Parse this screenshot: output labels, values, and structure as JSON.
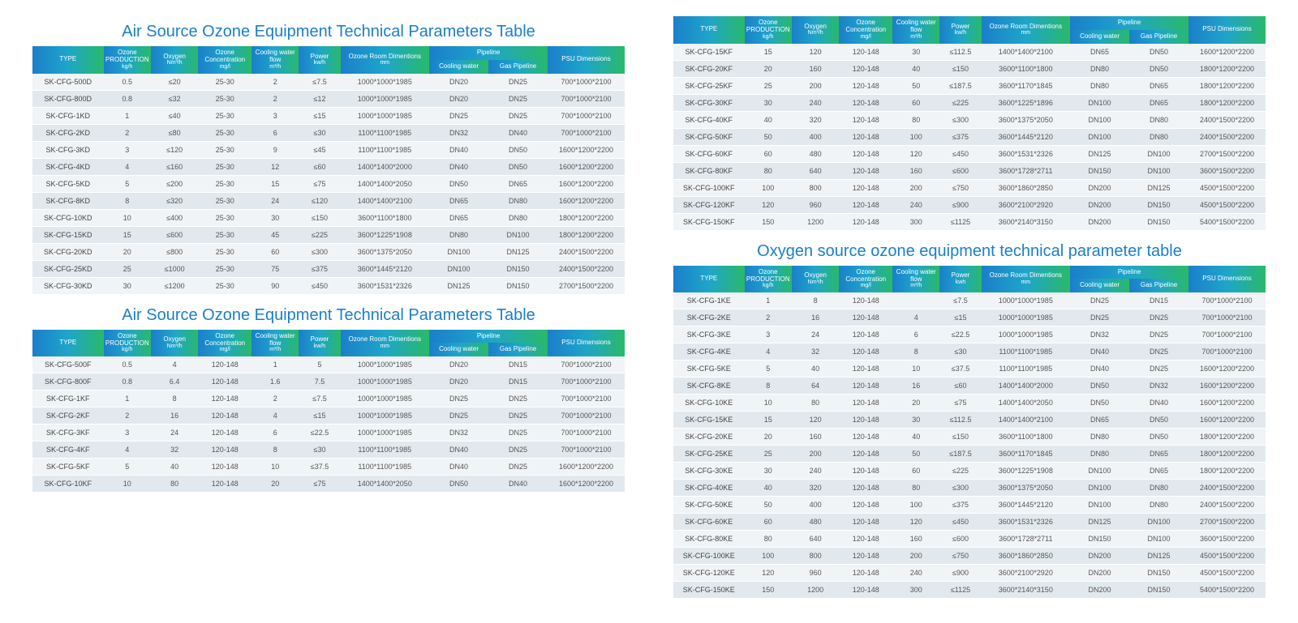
{
  "colors": {
    "title": "#1a7fcb",
    "header_grad_from": "#1a7fcb",
    "header_grad_mid": "#1fa5c9",
    "header_grad_to": "#2ab96a",
    "row_odd": "#f0f4f7",
    "row_even": "#e1e9ee",
    "text": "#555555"
  },
  "headers": {
    "type": "TYPE",
    "ozone_prod": "Ozone PRODUCTION",
    "ozone_prod_unit": "kg/h",
    "oxygen": "Oxygen",
    "oxygen_unit": "Nm³/h",
    "ozone_conc": "Ozone Concentration",
    "ozone_conc_unit": "mg/l",
    "cooling_flow": "Cooling water flow",
    "cooling_flow_unit": "m³/h",
    "power": "Power",
    "power_unit": "kw/h",
    "power_unit2": "kwh",
    "room": "Ozone Room Dimentions",
    "room_unit": "mm",
    "pipeline": "Pipeline",
    "cooling_water": "Cooling water",
    "gas": "Gas Pipeline",
    "psu": "PSU Dimensions"
  },
  "tables": [
    {
      "title": "Air Source Ozone Equipment Technical Parameters Table",
      "power_unit_key": "power_unit",
      "rows": [
        [
          "SK-CFG-500D",
          "0.5",
          "≤20",
          "25-30",
          "2",
          "≤7.5",
          "1000*1000*1985",
          "DN20",
          "DN25",
          "700*1000*2100"
        ],
        [
          "SK-CFG-800D",
          "0.8",
          "≤32",
          "25-30",
          "2",
          "≤12",
          "1000*1000*1985",
          "DN20",
          "DN25",
          "700*1000*2100"
        ],
        [
          "SK-CFG-1KD",
          "1",
          "≤40",
          "25-30",
          "3",
          "≤15",
          "1000*1000*1985",
          "DN25",
          "DN25",
          "700*1000*2100"
        ],
        [
          "SK-CFG-2KD",
          "2",
          "≤80",
          "25-30",
          "6",
          "≤30",
          "1100*1100*1985",
          "DN32",
          "DN40",
          "700*1000*2100"
        ],
        [
          "SK-CFG-3KD",
          "3",
          "≤120",
          "25-30",
          "9",
          "≤45",
          "1100*1100*1985",
          "DN40",
          "DN50",
          "1600*1200*2200"
        ],
        [
          "SK-CFG-4KD",
          "4",
          "≤160",
          "25-30",
          "12",
          "≤60",
          "1400*1400*2000",
          "DN40",
          "DN50",
          "1600*1200*2200"
        ],
        [
          "SK-CFG-5KD",
          "5",
          "≤200",
          "25-30",
          "15",
          "≤75",
          "1400*1400*2050",
          "DN50",
          "DN65",
          "1600*1200*2200"
        ],
        [
          "SK-CFG-8KD",
          "8",
          "≤320",
          "25-30",
          "24",
          "≤120",
          "1400*1400*2100",
          "DN65",
          "DN80",
          "1600*1200*2200"
        ],
        [
          "SK-CFG-10KD",
          "10",
          "≤400",
          "25-30",
          "30",
          "≤150",
          "3600*1100*1800",
          "DN65",
          "DN80",
          "1800*1200*2200"
        ],
        [
          "SK-CFG-15KD",
          "15",
          "≤600",
          "25-30",
          "45",
          "≤225",
          "3600*1225*1908",
          "DN80",
          "DN100",
          "1800*1200*2200"
        ],
        [
          "SK-CFG-20KD",
          "20",
          "≤800",
          "25-30",
          "60",
          "≤300",
          "3600*1375*2050",
          "DN100",
          "DN125",
          "2400*1500*2200"
        ],
        [
          "SK-CFG-25KD",
          "25",
          "≤1000",
          "25-30",
          "75",
          "≤375",
          "3600*1445*2120",
          "DN100",
          "DN150",
          "2400*1500*2200"
        ],
        [
          "SK-CFG-30KD",
          "30",
          "≤1200",
          "25-30",
          "90",
          "≤450",
          "3600*1531*2326",
          "DN125",
          "DN150",
          "2700*1500*2200"
        ]
      ]
    },
    {
      "title": "Air Source Ozone Equipment Technical Parameters Table",
      "power_unit_key": "power_unit",
      "rows": [
        [
          "SK-CFG-500F",
          "0.5",
          "4",
          "120-148",
          "1",
          "5",
          "1000*1000*1985",
          "DN20",
          "DN15",
          "700*1000*2100"
        ],
        [
          "SK-CFG-800F",
          "0.8",
          "6.4",
          "120-148",
          "1.6",
          "7.5",
          "1000*1000*1985",
          "DN20",
          "DN15",
          "700*1000*2100"
        ],
        [
          "SK-CFG-1KF",
          "1",
          "8",
          "120-148",
          "2",
          "≤7.5",
          "1000*1000*1985",
          "DN25",
          "DN25",
          "700*1000*2100"
        ],
        [
          "SK-CFG-2KF",
          "2",
          "16",
          "120-148",
          "4",
          "≤15",
          "1000*1000*1985",
          "DN25",
          "DN25",
          "700*1000*2100"
        ],
        [
          "SK-CFG-3KF",
          "3",
          "24",
          "120-148",
          "6",
          "≤22.5",
          "1000*1000*1985",
          "DN32",
          "DN25",
          "700*1000*2100"
        ],
        [
          "SK-CFG-4KF",
          "4",
          "32",
          "120-148",
          "8",
          "≤30",
          "1100*1100*1985",
          "DN40",
          "DN25",
          "700*1000*2100"
        ],
        [
          "SK-CFG-5KF",
          "5",
          "40",
          "120-148",
          "10",
          "≤37.5",
          "1100*1100*1985",
          "DN40",
          "DN25",
          "1600*1200*2200"
        ],
        [
          "SK-CFG-10KF",
          "10",
          "80",
          "120-148",
          "20",
          "≤75",
          "1400*1400*2050",
          "DN50",
          "DN40",
          "1600*1200*2200"
        ]
      ]
    },
    {
      "title": "",
      "power_unit_key": "power_unit",
      "rows": [
        [
          "SK-CFG-15KF",
          "15",
          "120",
          "120-148",
          "30",
          "≤112.5",
          "1400*1400*2100",
          "DN65",
          "DN50",
          "1600*1200*2200"
        ],
        [
          "SK-CFG-20KF",
          "20",
          "160",
          "120-148",
          "40",
          "≤150",
          "3600*1100*1800",
          "DN80",
          "DN50",
          "1800*1200*2200"
        ],
        [
          "SK-CFG-25KF",
          "25",
          "200",
          "120-148",
          "50",
          "≤187.5",
          "3600*1170*1845",
          "DN80",
          "DN65",
          "1800*1200*2200"
        ],
        [
          "SK-CFG-30KF",
          "30",
          "240",
          "120-148",
          "60",
          "≤225",
          "3600*1225*1896",
          "DN100",
          "DN65",
          "1800*1200*2200"
        ],
        [
          "SK-CFG-40KF",
          "40",
          "320",
          "120-148",
          "80",
          "≤300",
          "3600*1375*2050",
          "DN100",
          "DN80",
          "2400*1500*2200"
        ],
        [
          "SK-CFG-50KF",
          "50",
          "400",
          "120-148",
          "100",
          "≤375",
          "3600*1445*2120",
          "DN100",
          "DN80",
          "2400*1500*2200"
        ],
        [
          "SK-CFG-60KF",
          "60",
          "480",
          "120-148",
          "120",
          "≤450",
          "3600*1531*2326",
          "DN125",
          "DN100",
          "2700*1500*2200"
        ],
        [
          "SK-CFG-80KF",
          "80",
          "640",
          "120-148",
          "160",
          "≤600",
          "3600*1728*2711",
          "DN150",
          "DN100",
          "3600*1500*2200"
        ],
        [
          "SK-CFG-100KF",
          "100",
          "800",
          "120-148",
          "200",
          "≤750",
          "3600*1860*2850",
          "DN200",
          "DN125",
          "4500*1500*2200"
        ],
        [
          "SK-CFG-120KF",
          "120",
          "960",
          "120-148",
          "240",
          "≤900",
          "3600*2100*2920",
          "DN200",
          "DN150",
          "4500*1500*2200"
        ],
        [
          "SK-CFG-150KF",
          "150",
          "1200",
          "120-148",
          "300",
          "≤1125",
          "3600*2140*3150",
          "DN200",
          "DN150",
          "5400*1500*2200"
        ]
      ]
    },
    {
      "title": "Oxygen source ozone equipment technical parameter table",
      "power_unit_key": "power_unit2",
      "rows": [
        [
          "SK-CFG-1KE",
          "1",
          "8",
          "120-148",
          "",
          "≤7.5",
          "1000*1000*1985",
          "DN25",
          "DN15",
          "700*1000*2100"
        ],
        [
          "SK-CFG-2KE",
          "2",
          "16",
          "120-148",
          "4",
          "≤15",
          "1000*1000*1985",
          "DN25",
          "DN25",
          "700*1000*2100"
        ],
        [
          "SK-CFG-3KE",
          "3",
          "24",
          "120-148",
          "6",
          "≤22.5",
          "1000*1000*1985",
          "DN32",
          "DN25",
          "700*1000*2100"
        ],
        [
          "SK-CFG-4KE",
          "4",
          "32",
          "120-148",
          "8",
          "≤30",
          "1100*1100*1985",
          "DN40",
          "DN25",
          "700*1000*2100"
        ],
        [
          "SK-CFG-5KE",
          "5",
          "40",
          "120-148",
          "10",
          "≤37.5",
          "1100*1100*1985",
          "DN40",
          "DN25",
          "1600*1200*2200"
        ],
        [
          "SK-CFG-8KE",
          "8",
          "64",
          "120-148",
          "16",
          "≤60",
          "1400*1400*2000",
          "DN50",
          "DN32",
          "1600*1200*2200"
        ],
        [
          "SK-CFG-10KE",
          "10",
          "80",
          "120-148",
          "20",
          "≤75",
          "1400*1400*2050",
          "DN50",
          "DN40",
          "1600*1200*2200"
        ],
        [
          "SK-CFG-15KE",
          "15",
          "120",
          "120-148",
          "30",
          "≤112.5",
          "1400*1400*2100",
          "DN65",
          "DN50",
          "1600*1200*2200"
        ],
        [
          "SK-CFG-20KE",
          "20",
          "160",
          "120-148",
          "40",
          "≤150",
          "3600*1100*1800",
          "DN80",
          "DN50",
          "1800*1200*2200"
        ],
        [
          "SK-CFG-25KE",
          "25",
          "200",
          "120-148",
          "50",
          "≤187.5",
          "3600*1170*1845",
          "DN80",
          "DN65",
          "1800*1200*2200"
        ],
        [
          "SK-CFG-30KE",
          "30",
          "240",
          "120-148",
          "60",
          "≤225",
          "3600*1225*1908",
          "DN100",
          "DN65",
          "1800*1200*2200"
        ],
        [
          "SK-CFG-40KE",
          "40",
          "320",
          "120-148",
          "80",
          "≤300",
          "3600*1375*2050",
          "DN100",
          "DN80",
          "2400*1500*2200"
        ],
        [
          "SK-CFG-50KE",
          "50",
          "400",
          "120-148",
          "100",
          "≤375",
          "3600*1445*2120",
          "DN100",
          "DN80",
          "2400*1500*2200"
        ],
        [
          "SK-CFG-60KE",
          "60",
          "480",
          "120-148",
          "120",
          "≤450",
          "3600*1531*2326",
          "DN125",
          "DN100",
          "2700*1500*2200"
        ],
        [
          "SK-CFG-80KE",
          "80",
          "640",
          "120-148",
          "160",
          "≤600",
          "3600*1728*2711",
          "DN150",
          "DN100",
          "3600*1500*2200"
        ],
        [
          "SK-CFG-100KE",
          "100",
          "800",
          "120-148",
          "200",
          "≤750",
          "3600*1860*2850",
          "DN200",
          "DN125",
          "4500*1500*2200"
        ],
        [
          "SK-CFG-120KE",
          "120",
          "960",
          "120-148",
          "240",
          "≤900",
          "3600*2100*2920",
          "DN200",
          "DN150",
          "4500*1500*2200"
        ],
        [
          "SK-CFG-150KE",
          "150",
          "1200",
          "120-148",
          "300",
          "≤1125",
          "3600*2140*3150",
          "DN200",
          "DN150",
          "5400*1500*2200"
        ]
      ]
    }
  ]
}
